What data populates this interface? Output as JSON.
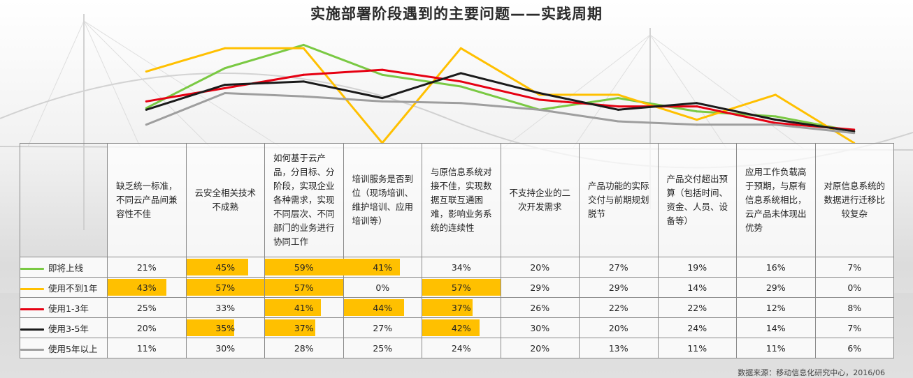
{
  "title": "实施部署阶段遇到的主要问题——实践周期",
  "source": "数据来源：移动信息化研究中心，2016/06",
  "chart_data": {
    "type": "line",
    "title": "实施部署阶段遇到的主要问题——实践周期",
    "categories": [
      "缺乏统一标准，不同云产品间兼容性不佳",
      "云安全相关技术不成熟",
      "如何基于云产品，分目标、分阶段，实现企业各种需求，实现不同层次、不同部门的业务进行协同工作",
      "培训服务是否到位（现场培训、维护培训、应用培训等）",
      "与原信息系统对接不佳，实现数据互联互通困难，影响业务系统的连续性",
      "不支持企业的二次开发需求",
      "产品功能的实际交付与前期规划脱节",
      "产品交付超出预算（包括时间、资金、人员、设备等）",
      "应用工作负载高于预期，与原有信息系统相比，云产品未体现出优势",
      "对原信息系统的数据进行迁移比较复杂"
    ],
    "series": [
      {
        "name": "即将上线",
        "color": "#7ac943",
        "values": [
          21,
          45,
          59,
          41,
          34,
          20,
          27,
          19,
          16,
          7
        ]
      },
      {
        "name": "使用不到1年",
        "color": "#ffc000",
        "values": [
          43,
          57,
          57,
          0,
          57,
          29,
          29,
          14,
          29,
          0
        ]
      },
      {
        "name": "使用1-3年",
        "color": "#e60012",
        "values": [
          25,
          33,
          41,
          44,
          37,
          26,
          22,
          22,
          12,
          8
        ]
      },
      {
        "name": "使用3-5年",
        "color": "#1a1a1a",
        "values": [
          20,
          35,
          37,
          27,
          42,
          30,
          20,
          24,
          14,
          7
        ]
      },
      {
        "name": "使用5年以上",
        "color": "#9e9e9e",
        "values": [
          11,
          30,
          28,
          25,
          24,
          20,
          13,
          11,
          11,
          6
        ]
      }
    ],
    "highlight_threshold": 35,
    "highlight_color": "#ffc000",
    "grid": false,
    "legend": "left-of-table"
  },
  "table": {
    "headers": [
      [
        "缺乏统一标准，",
        "不同云产品间兼",
        "容性不佳"
      ],
      [
        "云安全相关技术",
        "不成熟"
      ],
      [
        "如何基于云产",
        "品，分目标、分",
        "阶段，实现企业",
        "各种需求，实现",
        "不同层次、不同",
        "部门的业务进行",
        "协同工作"
      ],
      [
        "培训服务是否到",
        "位（现场培训、",
        "维护培训、应用",
        "培训等）"
      ],
      [
        "与原信息系统对",
        "接不佳，实现数",
        "据互联互通困",
        "难，影响业务系",
        "统的连续性"
      ],
      [
        "不支持企业的二",
        "次开发需求"
      ],
      [
        "产品功能的实际",
        "交付与前期规划",
        "脱节"
      ],
      [
        "产品交付超出预",
        "算（包括时间、",
        "资金、人员、设",
        "备等）"
      ],
      [
        "应用工作负载高",
        "于预期，与原有",
        "信息系统相比，",
        "云产品未体现出",
        "优势"
      ],
      [
        "对原信息系统的",
        "数据进行迁移比",
        "较复杂"
      ]
    ],
    "rows": [
      {
        "label": "即将上线",
        "cells": [
          "21%",
          "45%",
          "59%",
          "41%",
          "34%",
          "20%",
          "27%",
          "19%",
          "16%",
          "7%"
        ]
      },
      {
        "label": "使用不到1年",
        "cells": [
          "43%",
          "57%",
          "57%",
          "0%",
          "57%",
          "29%",
          "29%",
          "14%",
          "29%",
          "0%"
        ]
      },
      {
        "label": "使用1-3年",
        "cells": [
          "25%",
          "33%",
          "41%",
          "44%",
          "37%",
          "26%",
          "22%",
          "22%",
          "12%",
          "8%"
        ]
      },
      {
        "label": "使用3-5年",
        "cells": [
          "20%",
          "35%",
          "37%",
          "27%",
          "42%",
          "30%",
          "20%",
          "24%",
          "14%",
          "7%"
        ]
      },
      {
        "label": "使用5年以上",
        "cells": [
          "11%",
          "30%",
          "28%",
          "25%",
          "24%",
          "20%",
          "13%",
          "11%",
          "11%",
          "6%"
        ]
      }
    ]
  }
}
